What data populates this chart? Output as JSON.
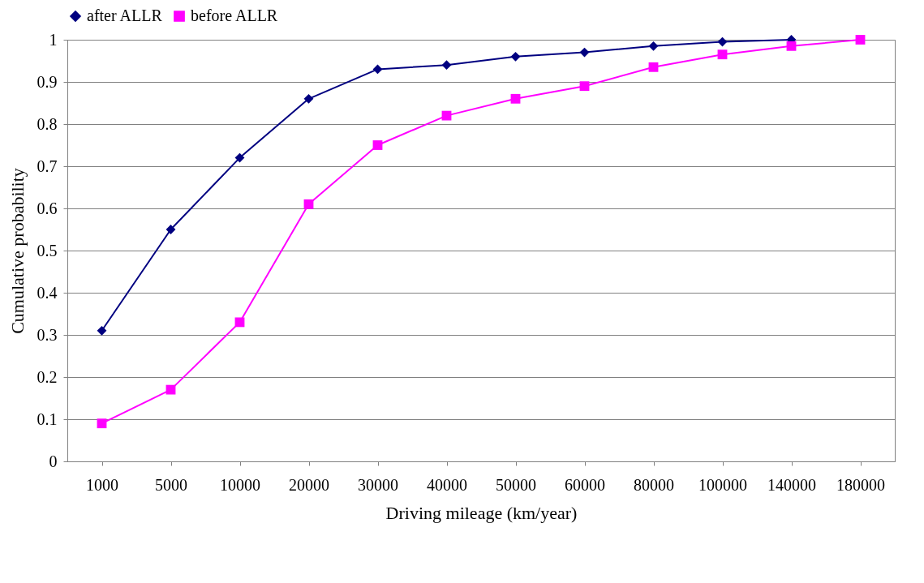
{
  "chart_data": {
    "type": "line",
    "xlabel": "Driving mileage (km/year)",
    "ylabel": "Cumulative probability",
    "categories": [
      "1000",
      "5000",
      "10000",
      "20000",
      "30000",
      "40000",
      "50000",
      "60000",
      "80000",
      "100000",
      "140000",
      "180000"
    ],
    "series": [
      {
        "name": "after ALLR",
        "color": "#000080",
        "marker": "diamond",
        "values": [
          0.31,
          0.55,
          0.72,
          0.86,
          0.93,
          0.94,
          0.96,
          0.97,
          0.985,
          0.995,
          1.0,
          null
        ]
      },
      {
        "name": "before ALLR",
        "color": "#ff00ff",
        "marker": "square",
        "values": [
          0.09,
          0.17,
          0.33,
          0.61,
          0.75,
          0.82,
          0.86,
          0.89,
          0.935,
          0.965,
          0.985,
          1.0
        ]
      }
    ],
    "ylim": [
      0,
      1
    ],
    "yticks": [
      0,
      0.1,
      0.2,
      0.3,
      0.4,
      0.5,
      0.6,
      0.7,
      0.8,
      0.9,
      1
    ],
    "grid": "y",
    "legend": "top",
    "line_style": "solid"
  }
}
